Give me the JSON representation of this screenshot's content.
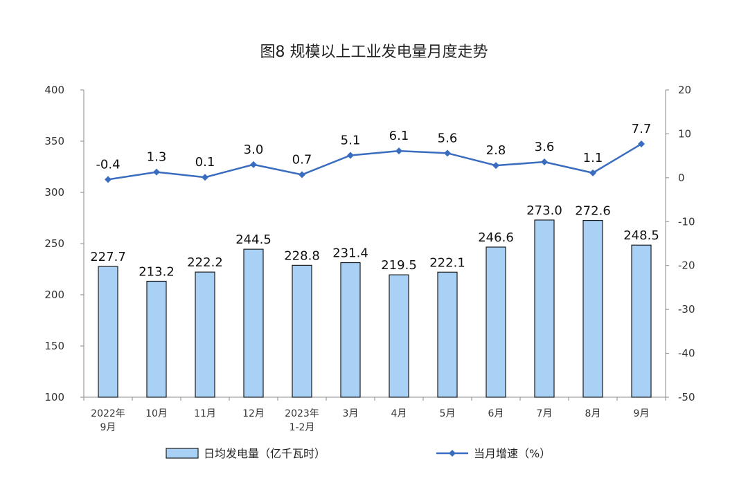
{
  "chart_data": {
    "type": "bar",
    "title": "图8  规模以上工业发电量月度走势",
    "categories": [
      [
        "2022年",
        "9月"
      ],
      [
        "10月"
      ],
      [
        "11月"
      ],
      [
        "12月"
      ],
      [
        "2023年",
        "1-2月"
      ],
      [
        "3月"
      ],
      [
        "4月"
      ],
      [
        "5月"
      ],
      [
        "6月"
      ],
      [
        "7月"
      ],
      [
        "8月"
      ],
      [
        "9月"
      ]
    ],
    "series": [
      {
        "name": "日均发电量（亿千瓦时）",
        "type": "bar",
        "axis": "left",
        "color": "#a9d1f5",
        "values": [
          227.7,
          213.2,
          222.2,
          244.5,
          228.8,
          231.4,
          219.5,
          222.1,
          246.6,
          273.0,
          272.6,
          248.5
        ],
        "labels": [
          "227.7",
          "213.2",
          "222.2",
          "244.5",
          "228.8",
          "231.4",
          "219.5",
          "222.1",
          "246.6",
          "273.0",
          "272.6",
          "248.5"
        ]
      },
      {
        "name": "当月增速（%）",
        "type": "line",
        "axis": "right",
        "color": "#3a6cbf",
        "values": [
          -0.4,
          1.3,
          0.1,
          3.0,
          0.7,
          5.1,
          6.1,
          5.6,
          2.8,
          3.6,
          1.1,
          7.7
        ],
        "labels": [
          "-0.4",
          "1.3",
          "0.1",
          "3.0",
          "0.7",
          "5.1",
          "6.1",
          "5.6",
          "2.8",
          "3.6",
          "1.1",
          "7.7"
        ]
      }
    ],
    "y_left": {
      "min": 100,
      "max": 400,
      "ticks": [
        100,
        150,
        200,
        250,
        300,
        350,
        400
      ]
    },
    "y_right": {
      "min": -50,
      "max": 20,
      "ticks": [
        -50,
        -40,
        -30,
        -20,
        -10,
        0,
        10,
        20
      ]
    },
    "grid": false,
    "legend_position": "bottom"
  }
}
